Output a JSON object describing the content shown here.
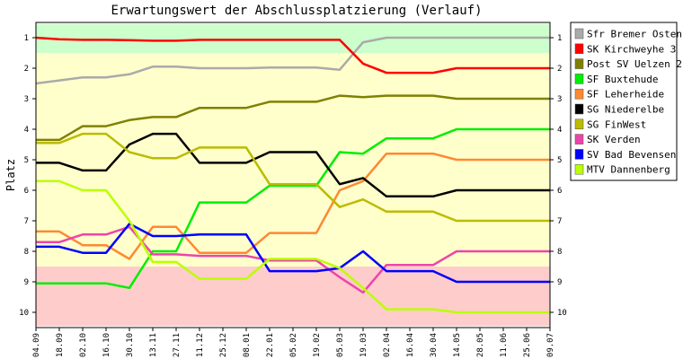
{
  "chart_data": {
    "type": "line",
    "title": "Erwartungswert der Abschlussplatzierung (Verlauf)",
    "ylabel": "Platz",
    "xlabel": "",
    "ylim": [
      1,
      10
    ],
    "y_inverted": true,
    "yticks": [
      1,
      2,
      3,
      4,
      5,
      6,
      7,
      8,
      9,
      10
    ],
    "categories": [
      "04.09",
      "18.09",
      "02.10",
      "16.10",
      "30.10",
      "13.11",
      "27.11",
      "11.12",
      "25.12",
      "08.01",
      "22.01",
      "05.02",
      "19.02",
      "05.03",
      "19.03",
      "02.04",
      "16.04",
      "30.04",
      "14.05",
      "28.05",
      "11.06",
      "25.06",
      "09.07"
    ],
    "legend_position": "right",
    "background_bands": [
      {
        "from": 0.55,
        "to": 1.5,
        "color": "#ccffcc"
      },
      {
        "from": 1.5,
        "to": 8.5,
        "color": "#ffffcc"
      },
      {
        "from": 8.5,
        "to": 10.45,
        "color": "#ffcccc"
      }
    ],
    "series": [
      {
        "name": "Sfr Bremer Osten",
        "color": "#aaaaaa",
        "values": [
          2.5,
          2.4,
          2.3,
          2.3,
          2.2,
          1.95,
          1.95,
          2.0,
          2.0,
          2.0,
          1.98,
          1.98,
          1.98,
          2.05,
          1.15,
          1.0,
          1.0,
          1.0,
          1.0,
          1.0,
          1.0,
          1.0,
          1.0
        ]
      },
      {
        "name": "SK Kirchweyhe 3",
        "color": "#ff0000",
        "values": [
          1.0,
          1.05,
          1.07,
          1.07,
          1.08,
          1.1,
          1.1,
          1.07,
          1.07,
          1.07,
          1.07,
          1.07,
          1.07,
          1.07,
          1.85,
          2.15,
          2.15,
          2.15,
          2.0,
          2.0,
          2.0,
          2.0,
          2.0
        ]
      },
      {
        "name": "Post SV Uelzen 2",
        "color": "#808000",
        "values": [
          4.35,
          4.35,
          3.9,
          3.9,
          3.7,
          3.6,
          3.6,
          3.3,
          3.3,
          3.3,
          3.1,
          3.1,
          3.1,
          2.9,
          2.95,
          2.9,
          2.9,
          2.9,
          3.0,
          3.0,
          3.0,
          3.0,
          3.0
        ]
      },
      {
        "name": "SF Buxtehude",
        "color": "#00ee00",
        "values": [
          9.05,
          9.05,
          9.05,
          9.05,
          9.2,
          8.0,
          8.0,
          6.4,
          6.4,
          6.4,
          5.85,
          5.85,
          5.85,
          4.75,
          4.8,
          4.3,
          4.3,
          4.3,
          4.0,
          4.0,
          4.0,
          4.0,
          4.0
        ]
      },
      {
        "name": "SF Leherheide",
        "color": "#ff8833",
        "values": [
          7.35,
          7.35,
          7.8,
          7.8,
          8.25,
          7.2,
          7.2,
          8.05,
          8.05,
          8.05,
          7.4,
          7.4,
          7.4,
          6.0,
          5.7,
          4.8,
          4.8,
          4.8,
          5.0,
          5.0,
          5.0,
          5.0,
          5.0
        ]
      },
      {
        "name": "SG Niederelbe",
        "color": "#000000",
        "values": [
          5.1,
          5.1,
          5.35,
          5.35,
          4.5,
          4.15,
          4.15,
          5.1,
          5.1,
          5.1,
          4.75,
          4.75,
          4.75,
          5.8,
          5.6,
          6.2,
          6.2,
          6.2,
          6.0,
          6.0,
          6.0,
          6.0,
          6.0
        ]
      },
      {
        "name": "SG FinWest",
        "color": "#bbbb00",
        "values": [
          4.45,
          4.45,
          4.15,
          4.15,
          4.75,
          4.95,
          4.95,
          4.6,
          4.6,
          4.6,
          5.8,
          5.8,
          5.8,
          6.55,
          6.3,
          6.7,
          6.7,
          6.7,
          7.0,
          7.0,
          7.0,
          7.0,
          7.0
        ]
      },
      {
        "name": "SK Verden",
        "color": "#ee44aa",
        "values": [
          7.7,
          7.7,
          7.45,
          7.45,
          7.2,
          8.1,
          8.1,
          8.15,
          8.15,
          8.15,
          8.3,
          8.3,
          8.3,
          8.85,
          9.35,
          8.45,
          8.45,
          8.45,
          8.0,
          8.0,
          8.0,
          8.0,
          8.0
        ]
      },
      {
        "name": "SV Bad Bevensen",
        "color": "#0000ff",
        "values": [
          7.85,
          7.85,
          8.05,
          8.05,
          7.1,
          7.5,
          7.5,
          7.45,
          7.45,
          7.45,
          8.65,
          8.65,
          8.65,
          8.55,
          8.0,
          8.65,
          8.65,
          8.65,
          9.0,
          9.0,
          9.0,
          9.0,
          9.0
        ]
      },
      {
        "name": "MTV Dannenberg",
        "color": "#bbff00",
        "values": [
          5.7,
          5.7,
          6.0,
          6.0,
          7.0,
          8.35,
          8.35,
          8.9,
          8.9,
          8.9,
          8.25,
          8.25,
          8.25,
          8.55,
          9.2,
          9.9,
          9.9,
          9.9,
          10.0,
          10.0,
          10.0,
          10.0,
          10.0
        ]
      }
    ]
  }
}
